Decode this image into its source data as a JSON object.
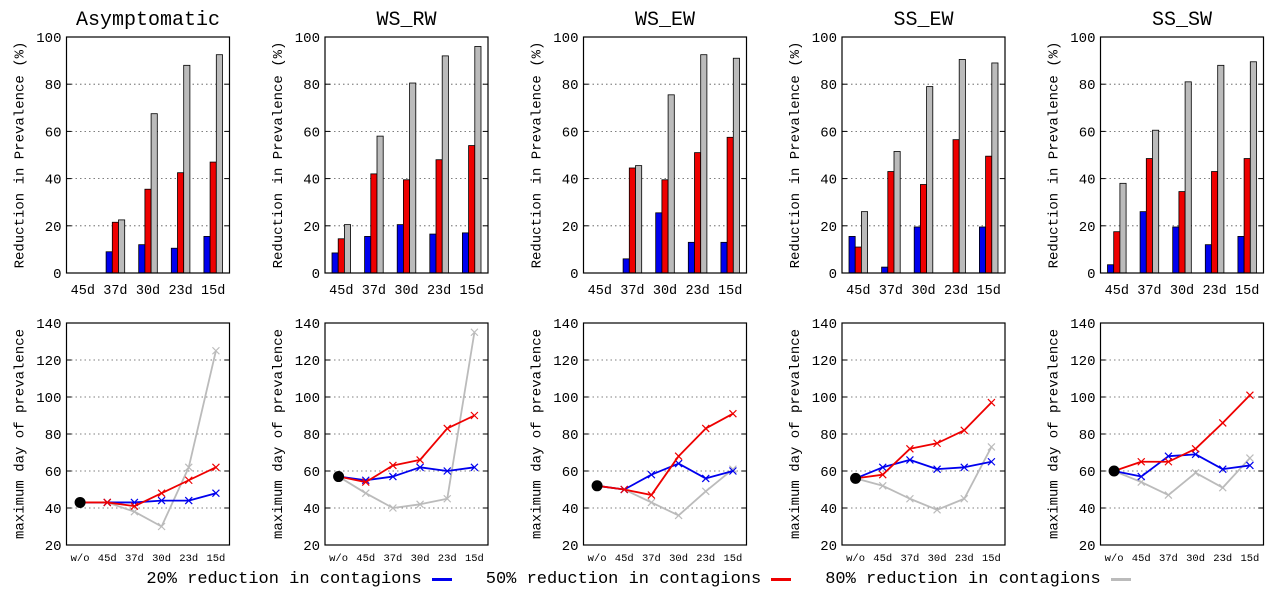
{
  "chart_data": {
    "palette": {
      "s20": "#0000ee",
      "s50": "#ee0000",
      "s80": "#bbbbbb",
      "start_marker": "#000000"
    },
    "legend": {
      "placement": "bottom-center",
      "items": [
        {
          "name": "20% reduction in contagions",
          "key": "s20"
        },
        {
          "name": "50% reduction in contagions",
          "key": "s50"
        },
        {
          "name": "80% reduction in contagions",
          "key": "s80"
        }
      ]
    },
    "panels": [
      {
        "title": "Asymptomatic",
        "bar": {
          "type": "bar",
          "ylabel": "Reduction in Prevalence (%)",
          "ylim": [
            0,
            100
          ],
          "yticks": [
            0,
            20,
            40,
            60,
            80,
            100
          ],
          "grid": true,
          "categories": [
            "45d",
            "37d",
            "30d",
            "23d",
            "15d"
          ],
          "series": [
            {
              "key": "s20",
              "values": [
                0,
                9,
                12,
                10.5,
                15.5
              ]
            },
            {
              "key": "s50",
              "values": [
                0,
                21.5,
                35.5,
                42.5,
                47
              ]
            },
            {
              "key": "s80",
              "values": [
                0,
                22.5,
                67.5,
                88,
                92.5
              ]
            }
          ]
        },
        "line": {
          "type": "line",
          "ylabel": "maximum day of prevalence",
          "ylim": [
            20,
            140
          ],
          "yticks": [
            20,
            40,
            60,
            80,
            100,
            120,
            140
          ],
          "grid": true,
          "categories": [
            "w/o",
            "45d",
            "37d",
            "30d",
            "23d",
            "15d"
          ],
          "start": 43,
          "series": [
            {
              "key": "s20",
              "values": [
                43,
                43,
                43,
                44,
                44,
                48
              ]
            },
            {
              "key": "s50",
              "values": [
                43,
                43,
                41,
                48,
                55,
                62
              ]
            },
            {
              "key": "s80",
              "values": [
                43,
                43,
                38,
                30,
                62,
                125
              ]
            }
          ]
        }
      },
      {
        "title": "WS_RW",
        "bar": {
          "type": "bar",
          "ylabel": "Reduction in Prevalence (%)",
          "ylim": [
            0,
            100
          ],
          "yticks": [
            0,
            20,
            40,
            60,
            80,
            100
          ],
          "grid": true,
          "categories": [
            "45d",
            "37d",
            "30d",
            "23d",
            "15d"
          ],
          "series": [
            {
              "key": "s20",
              "values": [
                8.5,
                15.5,
                20.5,
                16.5,
                17
              ]
            },
            {
              "key": "s50",
              "values": [
                14.5,
                42,
                39.5,
                48,
                54
              ]
            },
            {
              "key": "s80",
              "values": [
                20.5,
                58,
                80.5,
                92,
                96
              ]
            }
          ]
        },
        "line": {
          "type": "line",
          "ylabel": "maximum day of prevalence",
          "ylim": [
            20,
            140
          ],
          "yticks": [
            20,
            40,
            60,
            80,
            100,
            120,
            140
          ],
          "grid": true,
          "categories": [
            "w/o",
            "45d",
            "37d",
            "30d",
            "23d",
            "15d"
          ],
          "start": 57,
          "series": [
            {
              "key": "s20",
              "values": [
                57,
                55,
                57,
                62,
                60,
                62
              ]
            },
            {
              "key": "s50",
              "values": [
                57,
                54,
                63,
                66,
                83,
                90
              ]
            },
            {
              "key": "s80",
              "values": [
                57,
                48,
                40,
                42,
                45,
                135
              ]
            }
          ]
        }
      },
      {
        "title": "WS_EW",
        "bar": {
          "type": "bar",
          "ylabel": "Reduction in Prevalence (%)",
          "ylim": [
            0,
            100
          ],
          "yticks": [
            0,
            20,
            40,
            60,
            80,
            100
          ],
          "grid": true,
          "categories": [
            "45d",
            "37d",
            "30d",
            "23d",
            "15d"
          ],
          "series": [
            {
              "key": "s20",
              "values": [
                0,
                6,
                25.5,
                13,
                13
              ]
            },
            {
              "key": "s50",
              "values": [
                0,
                44.5,
                39.5,
                51,
                57.5
              ]
            },
            {
              "key": "s80",
              "values": [
                0,
                45.5,
                75.5,
                92.5,
                91
              ]
            }
          ]
        },
        "line": {
          "type": "line",
          "ylabel": "maximum day of prevalence",
          "ylim": [
            20,
            140
          ],
          "yticks": [
            20,
            40,
            60,
            80,
            100,
            120,
            140
          ],
          "grid": true,
          "categories": [
            "w/o",
            "45d",
            "37d",
            "30d",
            "23d",
            "15d"
          ],
          "start": 52,
          "series": [
            {
              "key": "s20",
              "values": [
                52,
                50,
                58,
                64,
                56,
                60
              ]
            },
            {
              "key": "s50",
              "values": [
                52,
                50,
                47,
                68,
                83,
                91
              ]
            },
            {
              "key": "s80",
              "values": [
                52,
                50,
                43,
                36,
                49,
                61
              ]
            }
          ]
        }
      },
      {
        "title": "SS_EW",
        "bar": {
          "type": "bar",
          "ylabel": "Reduction in Prevalence (%)",
          "ylim": [
            0,
            100
          ],
          "yticks": [
            0,
            20,
            40,
            60,
            80,
            100
          ],
          "grid": true,
          "categories": [
            "45d",
            "37d",
            "30d",
            "23d",
            "15d"
          ],
          "series": [
            {
              "key": "s20",
              "values": [
                15.5,
                2.5,
                19.5,
                0,
                19.5
              ]
            },
            {
              "key": "s50",
              "values": [
                11,
                43,
                37.5,
                56.5,
                49.5
              ]
            },
            {
              "key": "s80",
              "values": [
                26,
                51.5,
                79,
                90.5,
                89
              ]
            }
          ]
        },
        "line": {
          "type": "line",
          "ylabel": "maximum day of prevalence",
          "ylim": [
            20,
            140
          ],
          "yticks": [
            20,
            40,
            60,
            80,
            100,
            120,
            140
          ],
          "grid": true,
          "categories": [
            "w/o",
            "45d",
            "37d",
            "30d",
            "23d",
            "15d"
          ],
          "start": 56,
          "series": [
            {
              "key": "s20",
              "values": [
                56,
                62,
                66,
                61,
                62,
                65
              ]
            },
            {
              "key": "s50",
              "values": [
                56,
                58,
                72,
                75,
                82,
                97
              ]
            },
            {
              "key": "s80",
              "values": [
                56,
                52,
                45,
                39,
                45,
                73
              ]
            }
          ]
        }
      },
      {
        "title": "SS_SW",
        "bar": {
          "type": "bar",
          "ylabel": "Reduction in Prevalence (%)",
          "ylim": [
            0,
            100
          ],
          "yticks": [
            0,
            20,
            40,
            60,
            80,
            100
          ],
          "grid": true,
          "categories": [
            "45d",
            "37d",
            "30d",
            "23d",
            "15d"
          ],
          "series": [
            {
              "key": "s20",
              "values": [
                3.5,
                26,
                19.5,
                12,
                15.5
              ]
            },
            {
              "key": "s50",
              "values": [
                17.5,
                48.5,
                34.5,
                43,
                48.5
              ]
            },
            {
              "key": "s80",
              "values": [
                38,
                60.5,
                81,
                88,
                89.5
              ]
            }
          ]
        },
        "line": {
          "type": "line",
          "ylabel": "maximum day of prevalence",
          "ylim": [
            20,
            140
          ],
          "yticks": [
            20,
            40,
            60,
            80,
            100,
            120,
            140
          ],
          "grid": true,
          "categories": [
            "w/o",
            "45d",
            "37d",
            "30d",
            "23d",
            "15d"
          ],
          "start": 60,
          "series": [
            {
              "key": "s20",
              "values": [
                60,
                57,
                68,
                69,
                61,
                63
              ]
            },
            {
              "key": "s50",
              "values": [
                60,
                65,
                65,
                72,
                86,
                101
              ]
            },
            {
              "key": "s80",
              "values": [
                60,
                54,
                47,
                59,
                51,
                67
              ]
            }
          ]
        }
      }
    ]
  }
}
